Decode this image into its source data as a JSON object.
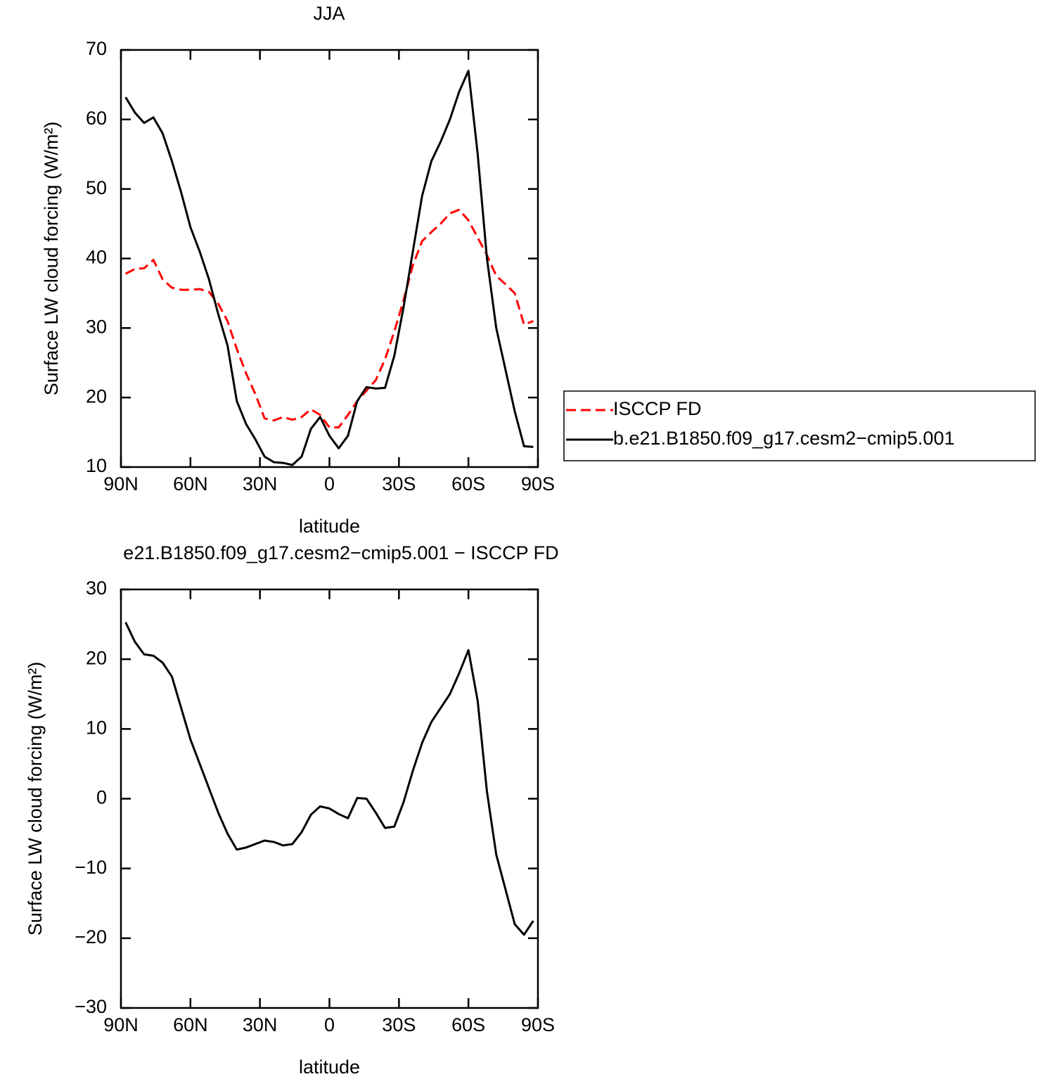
{
  "chart_data": [
    {
      "type": "line",
      "title": "JJA",
      "xlabel": "latitude",
      "ylabel": "Surface LW cloud forcing (W/m²)",
      "x": [
        88,
        84,
        80,
        76,
        72,
        68,
        64,
        60,
        56,
        52,
        48,
        44,
        40,
        36,
        32,
        28,
        24,
        20,
        16,
        12,
        8,
        4,
        0,
        -4,
        -8,
        -12,
        -16,
        -20,
        -24,
        -28,
        -32,
        -36,
        -40,
        -44,
        -48,
        -52,
        -56,
        -60,
        -64,
        -68,
        -72,
        -76,
        -80,
        -84,
        -88
      ],
      "series": [
        {
          "name": "ISCCP FD",
          "color": "#ff0000",
          "dash": true,
          "values": [
            37.8,
            38.5,
            38.6,
            39.8,
            37,
            35.8,
            35.5,
            35.5,
            35.6,
            35.2,
            33.5,
            31,
            27,
            23.5,
            20.5,
            17,
            16.7,
            17.2,
            16.8,
            17.2,
            18.3,
            17.5,
            15.7,
            15.7,
            17.5,
            19.5,
            21,
            22.5,
            25.5,
            29.5,
            34,
            39,
            42.5,
            43.8,
            45,
            46.5,
            47,
            45.5,
            43,
            40.5,
            37.5,
            36.3,
            35,
            30.5,
            31
          ]
        },
        {
          "name": "b.e21.B1850.f09_g17.cesm2−cmip5.001",
          "color": "#000000",
          "dash": false,
          "values": [
            63.2,
            61,
            59.5,
            60.3,
            58,
            54,
            49.5,
            44.5,
            41,
            37,
            32,
            27.5,
            19.5,
            16.2,
            14,
            11.5,
            10.7,
            10.6,
            10.3,
            11.5,
            15.5,
            17.2,
            14.5,
            12.7,
            14.5,
            19.5,
            21.5,
            21.3,
            21.4,
            26,
            33,
            41,
            49,
            54,
            56.8,
            60,
            64,
            67,
            55,
            40,
            30,
            24,
            18,
            13,
            12.9
          ]
        }
      ],
      "xlim": [
        90,
        -90
      ],
      "xticks": [
        {
          "value": 90,
          "label": "90N"
        },
        {
          "value": 60,
          "label": "60N"
        },
        {
          "value": 30,
          "label": "30N"
        },
        0,
        {
          "value": -30,
          "label": "30S"
        },
        {
          "value": -60,
          "label": "60S"
        },
        {
          "value": -90,
          "label": "90S"
        }
      ],
      "ylim": [
        10,
        70
      ],
      "yticks": [
        10,
        20,
        30,
        40,
        50,
        60,
        70
      ],
      "legend": "right"
    },
    {
      "type": "line",
      "title": "e21.B1850.f09_g17.cesm2−cmip5.001 − ISCCP FD",
      "xlabel": "latitude",
      "ylabel": "Surface LW cloud forcing (W/m²)",
      "x": [
        88,
        84,
        80,
        76,
        72,
        68,
        64,
        60,
        56,
        52,
        48,
        44,
        40,
        36,
        32,
        28,
        24,
        20,
        16,
        12,
        8,
        4,
        0,
        -4,
        -8,
        -12,
        -16,
        -20,
        -24,
        -28,
        -32,
        -36,
        -40,
        -44,
        -48,
        -52,
        -56,
        -60,
        -64,
        -68,
        -72,
        -76,
        -80,
        -84,
        -88
      ],
      "values": [
        25.3,
        22.5,
        20.7,
        20.5,
        19.5,
        17.5,
        13,
        8.5,
        5,
        1.5,
        -2,
        -5,
        -7.3,
        -7,
        -6.5,
        -6,
        -6.2,
        -6.7,
        -6.5,
        -4.8,
        -2.3,
        -1.1,
        -1.4,
        -2.2,
        -2.8,
        0.1,
        0,
        -2,
        -4.2,
        -4,
        -0.5,
        4,
        8,
        11,
        13,
        15,
        18,
        21.3,
        14,
        1,
        -8,
        -13,
        -18,
        -19.5,
        -17.5
      ],
      "color": "#000000",
      "xlim": [
        90,
        -90
      ],
      "xticks": [
        {
          "value": 90,
          "label": "90N"
        },
        {
          "value": 60,
          "label": "60N"
        },
        {
          "value": 30,
          "label": "30N"
        },
        0,
        {
          "value": -30,
          "label": "30S"
        },
        {
          "value": -60,
          "label": "60S"
        },
        {
          "value": -90,
          "label": "90S"
        }
      ],
      "ylim": [
        -30,
        30
      ],
      "yticks": [
        {
          "value": -30,
          "label": "−30"
        },
        {
          "value": -20,
          "label": "−20"
        },
        {
          "value": -10,
          "label": "−10"
        },
        0,
        10,
        20,
        30
      ]
    }
  ]
}
